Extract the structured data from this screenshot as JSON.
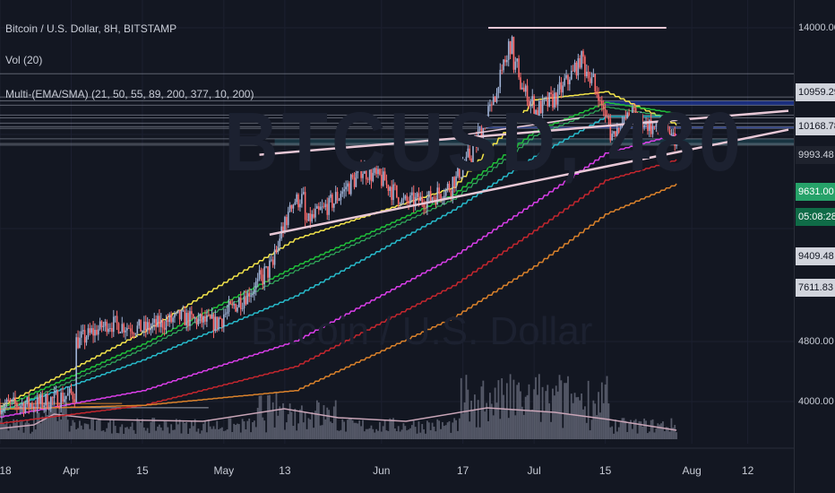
{
  "legend": {
    "line1": "Bitcoin / U.S. Dollar, 8H, BITSTAMP",
    "line2": "Vol (20)",
    "line3": "Multi-(EMA/SMA) (21, 50, 55, 89, 200, 377, 10, 200)"
  },
  "watermark": {
    "symbol": "BTCUSD, 480",
    "name": "Bitcoin / U.S. Dollar"
  },
  "price_labels": {
    "p14000": "14000.00",
    "p10959": "10959.29",
    "p10168": "10168.78",
    "p9993": "9993.48",
    "p9631": "9631.00",
    "countdown": "05:08:28",
    "p9409": "9409.48",
    "p7611": "7611.83",
    "p4800": "4800.00",
    "p4000": "4000.00"
  },
  "time_labels": [
    "18",
    "Apr",
    "15",
    "May",
    "13",
    "Jun",
    "17",
    "Jul",
    "15",
    "Aug",
    "12"
  ],
  "colors": {
    "background": "#131722",
    "candle_up": "#9fb2d6",
    "candle_down": "#ff6b6b",
    "ema21": "#f2e34a",
    "ema50": "#1fbf3a",
    "ema55": "#3ad26b",
    "ema89": "#27b9c9",
    "ema200": "#d93ee8",
    "ema377": "#c3262e",
    "sma200": "#d9812b",
    "trendline": "#e8c8d6",
    "zone": "#1f3ab0"
  },
  "chart_data": {
    "type": "candlestick",
    "title": "Bitcoin / U.S. Dollar, 8H, BITSTAMP",
    "x_range": [
      "2019-03-18",
      "2019-08-20"
    ],
    "y_scale": "log",
    "y_ticks": [
      4000,
      4800,
      14000
    ],
    "close_path": [
      [
        "2019-03-18",
        3950
      ],
      [
        "2019-03-25",
        3970
      ],
      [
        "2019-04-01",
        4100
      ],
      [
        "2019-04-02",
        4900
      ],
      [
        "2019-04-08",
        5200
      ],
      [
        "2019-04-15",
        5100
      ],
      [
        "2019-04-22",
        5300
      ],
      [
        "2019-04-29",
        5200
      ],
      [
        "2019-05-06",
        5800
      ],
      [
        "2019-05-10",
        6300
      ],
      [
        "2019-05-14",
        7800
      ],
      [
        "2019-05-16",
        7900
      ],
      [
        "2019-05-17",
        7300
      ],
      [
        "2019-05-22",
        7800
      ],
      [
        "2019-05-28",
        8700
      ],
      [
        "2019-06-01",
        8400
      ],
      [
        "2019-06-05",
        7800
      ],
      [
        "2019-06-10",
        7900
      ],
      [
        "2019-06-14",
        8200
      ],
      [
        "2019-06-18",
        9100
      ],
      [
        "2019-06-22",
        10600
      ],
      [
        "2019-06-26",
        13200
      ],
      [
        "2019-06-28",
        11600
      ],
      [
        "2019-07-01",
        10600
      ],
      [
        "2019-07-05",
        11100
      ],
      [
        "2019-07-10",
        12600
      ],
      [
        "2019-07-13",
        11300
      ],
      [
        "2019-07-16",
        9800
      ],
      [
        "2019-07-20",
        10500
      ],
      [
        "2019-07-25",
        9900
      ],
      [
        "2019-07-29",
        9600
      ]
    ],
    "moving_averages": [
      {
        "name": "EMA 21",
        "values": [
          [
            "2019-03-18",
            3940
          ],
          [
            "2019-04-15",
            5050
          ],
          [
            "2019-05-15",
            6900
          ],
          [
            "2019-06-15",
            8200
          ],
          [
            "2019-07-01",
            11000
          ],
          [
            "2019-07-15",
            11300
          ],
          [
            "2019-07-29",
            10100
          ]
        ]
      },
      {
        "name": "EMA 50",
        "values": [
          [
            "2019-03-18",
            3920
          ],
          [
            "2019-04-15",
            4850
          ],
          [
            "2019-05-15",
            6300
          ],
          [
            "2019-06-15",
            8000
          ],
          [
            "2019-07-01",
            9900
          ],
          [
            "2019-07-15",
            10900
          ],
          [
            "2019-07-29",
            10500
          ]
        ]
      },
      {
        "name": "EMA 89",
        "values": [
          [
            "2019-03-18",
            3880
          ],
          [
            "2019-04-15",
            4600
          ],
          [
            "2019-05-15",
            5700
          ],
          [
            "2019-06-15",
            7600
          ],
          [
            "2019-07-01",
            9100
          ],
          [
            "2019-07-15",
            10400
          ],
          [
            "2019-07-29",
            10400
          ]
        ]
      },
      {
        "name": "EMA 200",
        "values": [
          [
            "2019-03-18",
            3800
          ],
          [
            "2019-04-15",
            4150
          ],
          [
            "2019-05-15",
            4900
          ],
          [
            "2019-06-15",
            6500
          ],
          [
            "2019-07-01",
            7800
          ],
          [
            "2019-07-15",
            9200
          ],
          [
            "2019-07-29",
            9800
          ]
        ]
      },
      {
        "name": "EMA 377",
        "values": [
          [
            "2019-03-18",
            3720
          ],
          [
            "2019-04-15",
            3950
          ],
          [
            "2019-05-15",
            4500
          ],
          [
            "2019-06-15",
            5900
          ],
          [
            "2019-07-01",
            7100
          ],
          [
            "2019-07-15",
            8400
          ],
          [
            "2019-07-29",
            9000
          ]
        ]
      },
      {
        "name": "SMA 200",
        "values": [
          [
            "2019-03-18",
            3900
          ],
          [
            "2019-04-15",
            3950
          ],
          [
            "2019-05-15",
            4150
          ],
          [
            "2019-06-15",
            5300
          ],
          [
            "2019-07-01",
            6300
          ],
          [
            "2019-07-15",
            7500
          ],
          [
            "2019-07-29",
            8300
          ]
        ]
      }
    ],
    "horizontal_levels": [
      14000,
      12000,
      11100,
      10959.29,
      10800,
      10450,
      10350,
      10168.78,
      10050,
      9993.48,
      9650,
      9500,
      9450
    ],
    "zones": [
      [
        10959.29,
        10800
      ],
      [
        10050,
        9993.48
      ],
      [
        9650,
        9450
      ]
    ]
  }
}
